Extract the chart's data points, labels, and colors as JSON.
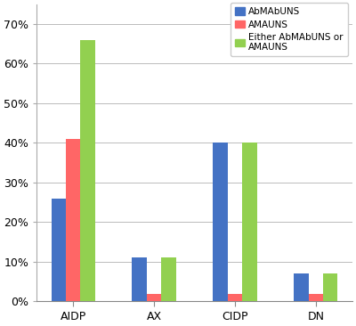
{
  "categories": [
    "AIDP",
    "AX",
    "CIDP",
    "DN"
  ],
  "series": [
    {
      "label": "AbMAbUNS",
      "color": "#4472C4",
      "values": [
        26,
        11,
        40,
        7
      ]
    },
    {
      "label": "AMAUNS",
      "color": "#FF6666",
      "values": [
        41,
        2,
        2,
        2
      ]
    },
    {
      "label": "Either AbMAbUNS or\nAMAUNS",
      "color": "#92D050",
      "values": [
        66,
        11,
        40,
        7
      ]
    }
  ],
  "ylim": [
    0,
    75
  ],
  "yticks": [
    0,
    10,
    20,
    30,
    40,
    50,
    60,
    70
  ],
  "ytick_labels": [
    "0%",
    "10%",
    "20%",
    "30%",
    "40%",
    "50%",
    "60%",
    "70%"
  ],
  "background_color": "#FFFFFF",
  "grid_color": "#BBBBBB",
  "bar_width": 0.18,
  "figsize": [
    4.0,
    3.66
  ],
  "dpi": 100
}
